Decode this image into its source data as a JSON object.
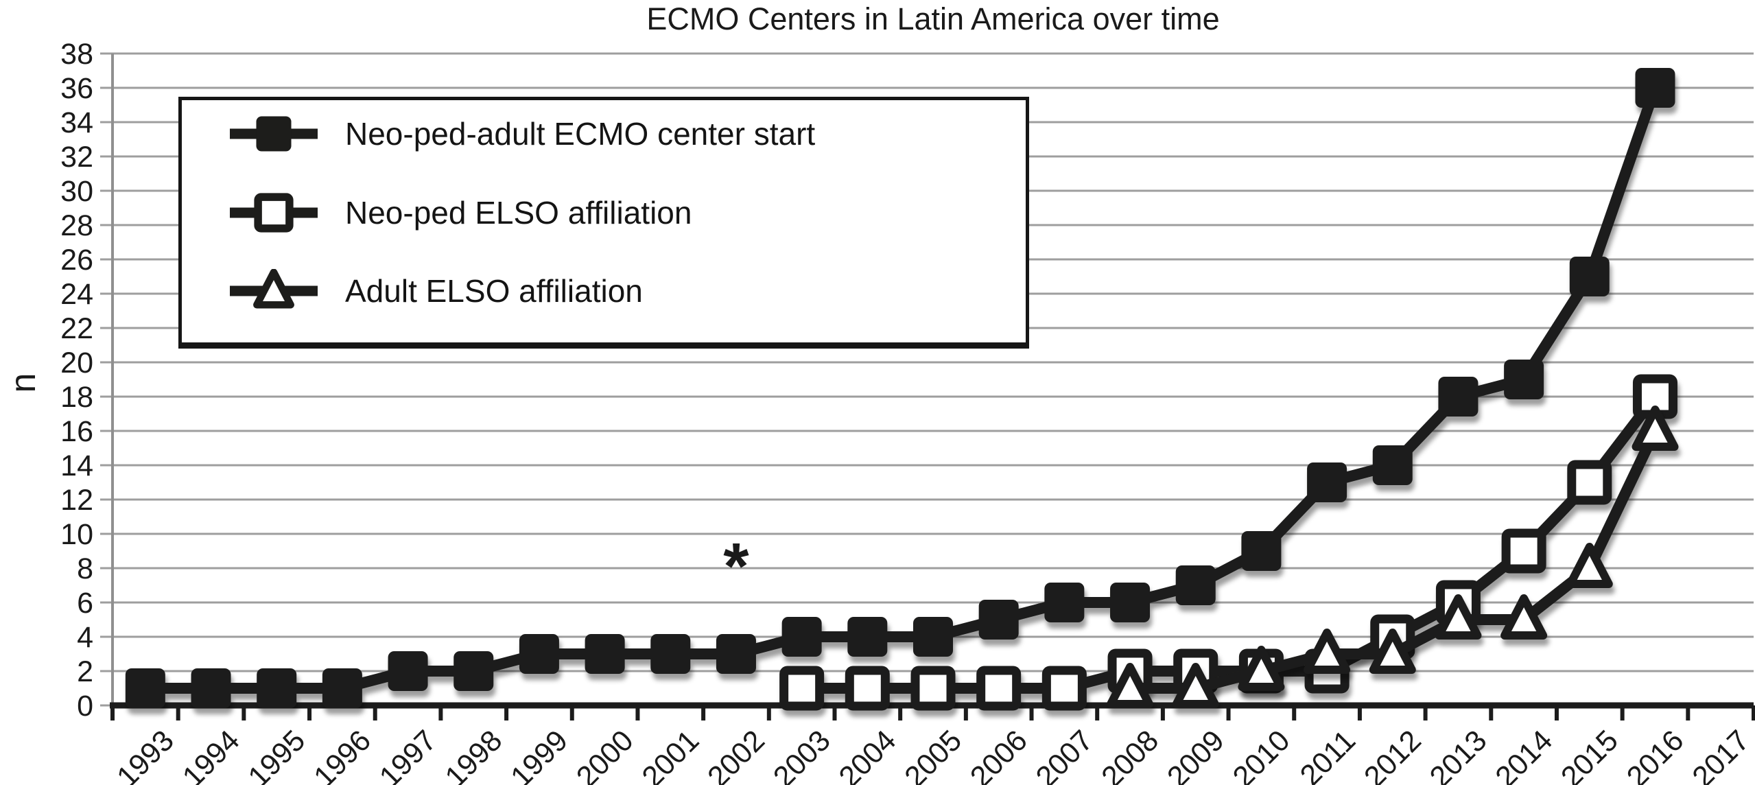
{
  "figure": {
    "title": "ECMO Centers in Latin America over time",
    "y_axis_label": "n"
  },
  "chart_data": {
    "type": "line",
    "title": "ECMO Centers in Latin America over time",
    "xlabel": "",
    "ylabel": "n",
    "ylim": [
      0,
      38
    ],
    "ytick_step": 2,
    "yticks": [
      0,
      2,
      4,
      6,
      8,
      10,
      12,
      14,
      16,
      18,
      20,
      22,
      24,
      26,
      28,
      30,
      32,
      34,
      36,
      38
    ],
    "grid": true,
    "legend_position": "upper-left-box",
    "categories": [
      "1993",
      "1994",
      "1995",
      "1996",
      "1997",
      "1998",
      "1999",
      "2000",
      "2001",
      "2002",
      "2003",
      "2004",
      "2005",
      "2006",
      "2007",
      "2008",
      "2009",
      "2010",
      "2011",
      "2012",
      "2013",
      "2014",
      "2015",
      "2016",
      "2017"
    ],
    "series": [
      {
        "name": "Neo-ped-adult ECMO center start",
        "marker": "filled-square",
        "values": [
          1,
          1,
          1,
          1,
          2,
          2,
          3,
          3,
          3,
          3,
          4,
          4,
          4,
          5,
          6,
          6,
          7,
          9,
          13,
          14,
          18,
          19,
          25,
          36,
          null
        ]
      },
      {
        "name": "Neo-ped ELSO affiliation",
        "marker": "open-square",
        "values": [
          null,
          null,
          null,
          null,
          null,
          null,
          null,
          null,
          null,
          null,
          1,
          1,
          1,
          1,
          1,
          2,
          2,
          2,
          2,
          4,
          6,
          9,
          13,
          18,
          null
        ]
      },
      {
        "name": "Adult ELSO affiliation",
        "marker": "open-triangle",
        "values": [
          null,
          null,
          null,
          null,
          null,
          null,
          null,
          null,
          null,
          null,
          null,
          null,
          null,
          null,
          null,
          1,
          1,
          2,
          3,
          3,
          5,
          5,
          8,
          16,
          null
        ]
      }
    ],
    "annotations": [
      {
        "x": "2002",
        "y": 8.6,
        "text": "*"
      }
    ]
  },
  "colors": {
    "series": "#1d1d1b",
    "grid": "#9e9e9e",
    "y_axis": "#8f8f8f",
    "x_axis": "#1c1c1c",
    "text": "#1a1a1a",
    "background": "#ffffff"
  }
}
